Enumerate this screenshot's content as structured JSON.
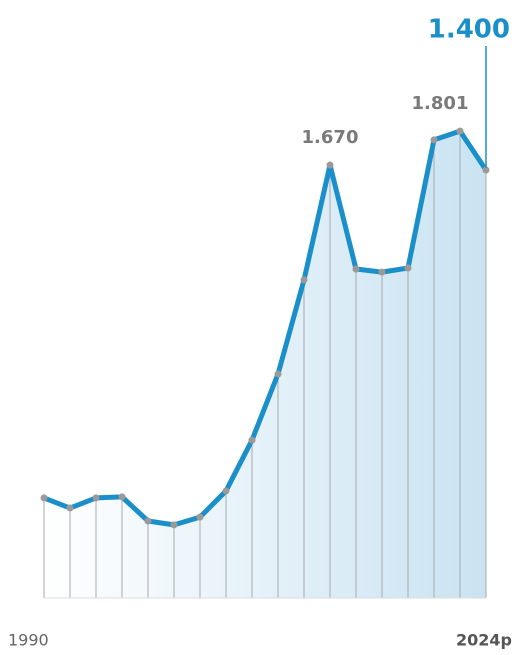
{
  "chart_data": {
    "type": "line",
    "categories": [
      "1990",
      null,
      null,
      null,
      null,
      null,
      null,
      null,
      null,
      null,
      null,
      null,
      null,
      null,
      null,
      null,
      null,
      "2024p"
    ],
    "series": [
      {
        "color": "#1a8fc9",
        "values": [
          386,
          347,
          386,
          390,
          297,
          282,
          312,
          413,
          609,
          864,
          1227,
          1670,
          1269,
          1257,
          1273,
          1767,
          1801,
          1651
        ],
        "value_labels": [
          null,
          null,
          null,
          null,
          null,
          null,
          null,
          null,
          null,
          null,
          null,
          "1.670",
          null,
          null,
          null,
          null,
          "1.801",
          null
        ]
      }
    ],
    "annotation": "1.400",
    "ylim": [
      0,
      2000
    ]
  }
}
